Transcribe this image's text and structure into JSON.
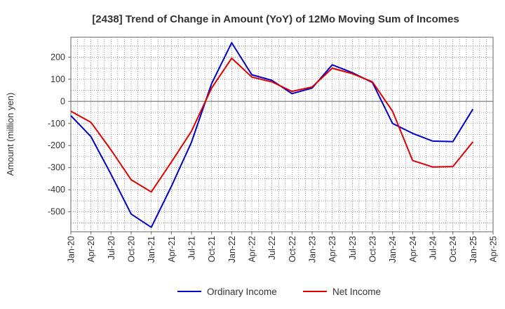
{
  "chart_data": {
    "type": "line",
    "title": "[2438]  Trend of Change in Amount (YoY) of 12Mo Moving Sum of Incomes",
    "xlabel": "",
    "ylabel": "Amount (million yen)",
    "ylim": [
      -590,
      290
    ],
    "yticks": [
      200,
      100,
      0,
      -100,
      -200,
      -300,
      -400,
      -500
    ],
    "x_tick_labels": [
      "Jan-20",
      "Apr-20",
      "Jul-20",
      "Oct-20",
      "Jan-21",
      "Apr-21",
      "Jul-21",
      "Oct-21",
      "Jan-22",
      "Apr-22",
      "Jul-22",
      "Oct-22",
      "Jan-23",
      "Apr-23",
      "Jul-23",
      "Oct-23",
      "Jan-24",
      "Apr-24",
      "Jul-24",
      "Oct-24",
      "Jan-25",
      "Apr-25"
    ],
    "grid": true,
    "legend_position": "bottom",
    "series": [
      {
        "name": "Ordinary Income",
        "color": "#0000cc",
        "values": [
          -65,
          -160,
          -330,
          -510,
          -570,
          -385,
          -185,
          80,
          265,
          120,
          95,
          35,
          60,
          165,
          130,
          85,
          -100,
          -145,
          -180,
          -182,
          -35
        ]
      },
      {
        "name": "Net Income",
        "color": "#e00000",
        "values": [
          -45,
          -95,
          -220,
          -355,
          -410,
          -275,
          -135,
          60,
          195,
          110,
          88,
          45,
          65,
          150,
          125,
          88,
          -45,
          -268,
          -297,
          -295,
          -183
        ]
      }
    ]
  }
}
